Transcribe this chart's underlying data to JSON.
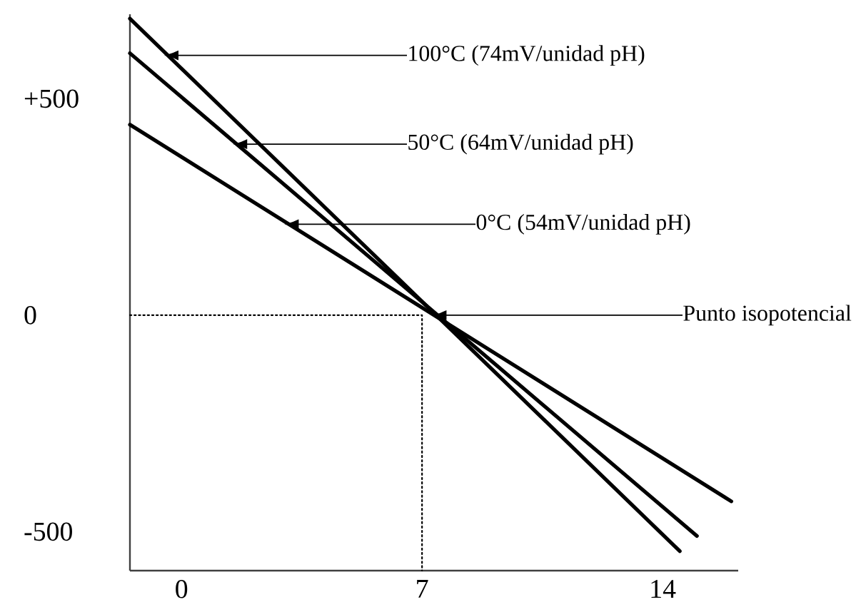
{
  "chart_data": {
    "type": "line",
    "series": [
      {
        "color": "#000000",
        "line_style": "solid",
        "x": [
          -1.5,
          14.5
        ],
        "values": [
          685,
          -545
        ]
      },
      {
        "color": "#000000",
        "line_style": "solid",
        "x": [
          -1.5,
          15.0
        ],
        "values": [
          605,
          -510
        ]
      },
      {
        "color": "#000000",
        "line_style": "solid",
        "x": [
          -1.5,
          16.0
        ],
        "values": [
          440,
          -430
        ]
      },
      {
        "color": "#000000",
        "line_style": "dotted",
        "x": [
          -1.5,
          7,
          7
        ],
        "values": [
          0,
          0,
          -590
        ]
      }
    ],
    "xlim": [
      -1.5,
      16.2
    ],
    "ylim": [
      -590,
      695
    ],
    "xticks": [
      0,
      7,
      14
    ],
    "yticks": [
      {
        "value": 500,
        "label": "+500"
      },
      0,
      -500
    ],
    "annotations": [
      {
        "text": "100°C (74mV/unidad pH)",
        "x": -0.4,
        "y": 600
      },
      {
        "text": "50°C (64mV/unidad pH)",
        "x": 1.6,
        "y": 395
      },
      {
        "text": "0°C (54mV/unidad pH)",
        "x": 3.1,
        "y": 210
      },
      {
        "text": "Punto isopotencial",
        "x": 7.4,
        "y": 0
      }
    ]
  }
}
